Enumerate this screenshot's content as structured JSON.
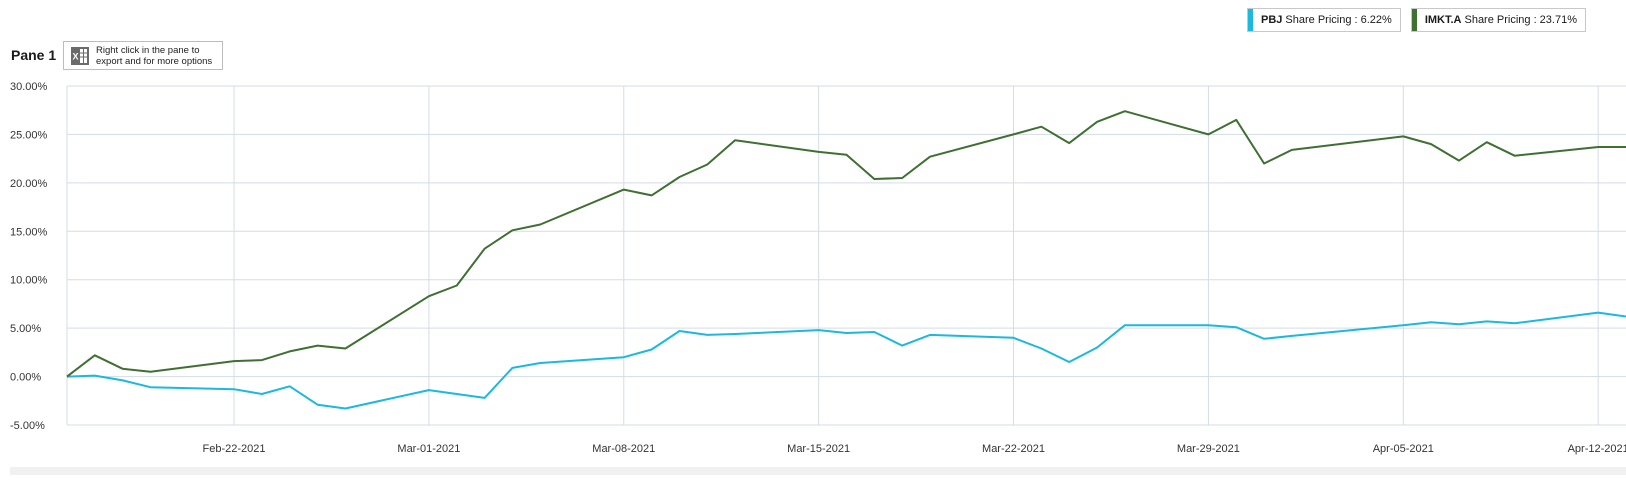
{
  "pane": {
    "title": "Pane 1",
    "export_hint": "Right click in the pane to export and for more options",
    "export_icon": "excel-export-icon"
  },
  "legend": [
    {
      "ticker": "PBJ",
      "label": "Share Pricing : 6.22%",
      "color": "#1cb8dd"
    },
    {
      "ticker": "IMKT.A",
      "label": "Share Pricing : 23.71%",
      "color": "#3f6f32"
    }
  ],
  "chart_data": {
    "type": "line",
    "x_axis": {
      "range": [
        "2021-02-16",
        "2021-04-13"
      ],
      "ticks": [
        "Feb-22-2021",
        "Mar-01-2021",
        "Mar-08-2021",
        "Mar-15-2021",
        "Mar-22-2021",
        "Mar-29-2021",
        "Apr-05-2021",
        "Apr-12-2021"
      ]
    },
    "y_axis": {
      "range": [
        -5,
        30
      ],
      "ticks": [
        "30.00%",
        "25.00%",
        "20.00%",
        "15.00%",
        "10.00%",
        "5.00%",
        "0.00%",
        "-5.00%"
      ],
      "tick_values": [
        30,
        25,
        20,
        15,
        10,
        5,
        0,
        -5
      ]
    },
    "grid": true,
    "legend_position": "top-right",
    "x": [
      "2021-02-16",
      "2021-02-17",
      "2021-02-18",
      "2021-02-19",
      "2021-02-22",
      "2021-02-23",
      "2021-02-24",
      "2021-02-25",
      "2021-02-26",
      "2021-03-01",
      "2021-03-02",
      "2021-03-03",
      "2021-03-04",
      "2021-03-05",
      "2021-03-08",
      "2021-03-09",
      "2021-03-10",
      "2021-03-11",
      "2021-03-12",
      "2021-03-15",
      "2021-03-16",
      "2021-03-17",
      "2021-03-18",
      "2021-03-19",
      "2021-03-22",
      "2021-03-23",
      "2021-03-24",
      "2021-03-25",
      "2021-03-26",
      "2021-03-29",
      "2021-03-30",
      "2021-03-31",
      "2021-04-01",
      "2021-04-05",
      "2021-04-06",
      "2021-04-07",
      "2021-04-08",
      "2021-04-09",
      "2021-04-12",
      "2021-04-13"
    ],
    "series": [
      {
        "name": "PBJ",
        "values": [
          0.0,
          0.1,
          -0.4,
          -1.1,
          -1.3,
          -1.8,
          -1.0,
          -2.9,
          -3.3,
          -1.4,
          -1.8,
          -2.2,
          0.9,
          1.4,
          2.0,
          2.8,
          4.7,
          4.3,
          4.4,
          4.8,
          4.5,
          4.6,
          3.2,
          4.3,
          4.0,
          2.9,
          1.5,
          3.0,
          5.3,
          5.3,
          5.1,
          3.9,
          4.2,
          5.3,
          5.6,
          5.4,
          5.7,
          5.5,
          6.6,
          6.2
        ]
      },
      {
        "name": "IMKT.A",
        "values": [
          0.0,
          2.2,
          0.8,
          0.5,
          1.6,
          1.7,
          2.6,
          3.2,
          2.9,
          8.3,
          9.4,
          13.2,
          15.1,
          15.7,
          19.3,
          18.7,
          20.6,
          21.9,
          24.4,
          23.2,
          22.9,
          20.4,
          20.5,
          22.7,
          25.0,
          25.8,
          24.1,
          26.3,
          27.4,
          25.0,
          26.5,
          22.0,
          23.4,
          24.8,
          24.0,
          22.3,
          24.2,
          22.8,
          23.7,
          23.7
        ]
      }
    ]
  }
}
